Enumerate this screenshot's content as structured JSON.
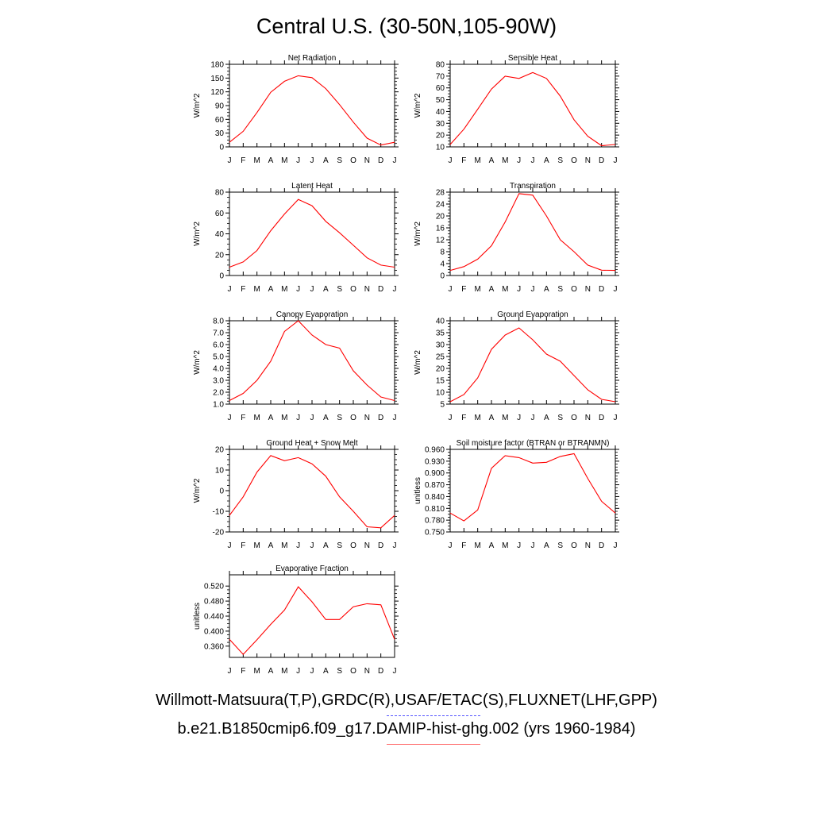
{
  "title": "Central U.S. (30-50N,105-90W)",
  "month_labels": [
    "J",
    "F",
    "M",
    "A",
    "M",
    "J",
    "J",
    "A",
    "S",
    "O",
    "N",
    "D",
    "J"
  ],
  "colors": {
    "model": "#ff0000",
    "obs": "#5555ff",
    "axis": "#000000"
  },
  "legend": {
    "obs_label": "Willmott-Matsuura(T,P),GRDC(R),USAF/ETAC(S),FLUXNET(LHF,GPP)",
    "model_label": "b.e21.B1850cmip6.f09_g17.DAMIP-hist-ghg.002 (yrs 1960-1984)"
  },
  "chart_data": [
    {
      "type": "line",
      "title": "Net Radiation",
      "ylabel": "W/m^2",
      "ylim": [
        0,
        180
      ],
      "yticks": [
        "0",
        "30",
        "60",
        "90",
        "120",
        "150",
        "180"
      ],
      "ytick_values": [
        0,
        30,
        60,
        90,
        120,
        150,
        180
      ],
      "x": [
        "J",
        "F",
        "M",
        "A",
        "M",
        "J",
        "J",
        "A",
        "S",
        "O",
        "N",
        "D",
        "J"
      ],
      "values": [
        10,
        34,
        75,
        119,
        143,
        155,
        151,
        127,
        92,
        54,
        19,
        4,
        10
      ]
    },
    {
      "type": "line",
      "title": "Sensible Heat",
      "ylabel": "W/m^2",
      "ylim": [
        10,
        80
      ],
      "yticks": [
        "10",
        "20",
        "30",
        "40",
        "50",
        "60",
        "70",
        "80"
      ],
      "ytick_values": [
        10,
        20,
        30,
        40,
        50,
        60,
        70,
        80
      ],
      "x": [
        "J",
        "F",
        "M",
        "A",
        "M",
        "J",
        "J",
        "A",
        "S",
        "O",
        "N",
        "D",
        "J"
      ],
      "values": [
        12,
        25,
        42,
        59,
        70,
        68,
        73,
        68,
        53,
        33,
        19,
        11,
        12
      ]
    },
    {
      "type": "line",
      "title": "Latent Heat",
      "ylabel": "W/m^2",
      "ylim": [
        0,
        80
      ],
      "yticks": [
        "0",
        "20",
        "40",
        "60",
        "80"
      ],
      "ytick_values": [
        0,
        20,
        40,
        60,
        80
      ],
      "x": [
        "J",
        "F",
        "M",
        "A",
        "M",
        "J",
        "J",
        "A",
        "S",
        "O",
        "N",
        "D",
        "J"
      ],
      "values": [
        8,
        13,
        24,
        43,
        59,
        73,
        67,
        52,
        41,
        29,
        17,
        10,
        8
      ]
    },
    {
      "type": "line",
      "title": "Transpiration",
      "ylabel": "W/m^2",
      "ylim": [
        0,
        28
      ],
      "yticks": [
        "0",
        "4",
        "8",
        "12",
        "16",
        "20",
        "24",
        "28"
      ],
      "ytick_values": [
        0,
        4,
        8,
        12,
        16,
        20,
        24,
        28
      ],
      "x": [
        "J",
        "F",
        "M",
        "A",
        "M",
        "J",
        "J",
        "A",
        "S",
        "O",
        "N",
        "D",
        "J"
      ],
      "values": [
        1.7,
        3,
        5.5,
        10,
        18,
        27.5,
        27,
        20,
        12,
        8,
        3.5,
        1.8,
        1.7
      ]
    },
    {
      "type": "line",
      "title": "Canopy Evaporation",
      "ylabel": "W/m^2",
      "ylim": [
        1.0,
        8.0
      ],
      "yticks": [
        "1.0",
        "2.0",
        "3.0",
        "4.0",
        "5.0",
        "6.0",
        "7.0",
        "8.0"
      ],
      "ytick_values": [
        1,
        2,
        3,
        4,
        5,
        6,
        7,
        8
      ],
      "x": [
        "J",
        "F",
        "M",
        "A",
        "M",
        "J",
        "J",
        "A",
        "S",
        "O",
        "N",
        "D",
        "J"
      ],
      "values": [
        1.3,
        1.9,
        3.0,
        4.6,
        7.1,
        8.0,
        6.8,
        6.0,
        5.7,
        3.8,
        2.6,
        1.6,
        1.3
      ]
    },
    {
      "type": "line",
      "title": "Ground Evaporation",
      "ylabel": "W/m^2",
      "ylim": [
        5,
        40
      ],
      "yticks": [
        "5",
        "10",
        "15",
        "20",
        "25",
        "30",
        "35",
        "40"
      ],
      "ytick_values": [
        5,
        10,
        15,
        20,
        25,
        30,
        35,
        40
      ],
      "x": [
        "J",
        "F",
        "M",
        "A",
        "M",
        "J",
        "J",
        "A",
        "S",
        "O",
        "N",
        "D",
        "J"
      ],
      "values": [
        6,
        9,
        16,
        28,
        34,
        37,
        32,
        26,
        23,
        17,
        11,
        7,
        6
      ]
    },
    {
      "type": "line",
      "title": "Ground Heat + Snow Melt",
      "ylabel": "W/m^2",
      "ylim": [
        -20,
        20
      ],
      "yticks": [
        "-20",
        "-10",
        "0",
        "10",
        "20"
      ],
      "ytick_values": [
        -20,
        -10,
        0,
        10,
        20
      ],
      "x": [
        "J",
        "F",
        "M",
        "A",
        "M",
        "J",
        "J",
        "A",
        "S",
        "O",
        "N",
        "D",
        "J"
      ],
      "values": [
        -12,
        -3,
        9,
        17,
        14.5,
        16,
        13,
        7,
        -3,
        -10,
        -17.5,
        -18,
        -12
      ]
    },
    {
      "type": "line",
      "title": "Soil moisture factor (BTRAN or BTRANMN)",
      "ylabel": "unitless",
      "ylim": [
        0.75,
        0.96
      ],
      "yticks": [
        "0.750",
        "0.780",
        "0.810",
        "0.840",
        "0.870",
        "0.900",
        "0.930",
        "0.960"
      ],
      "ytick_values": [
        0.75,
        0.78,
        0.81,
        0.84,
        0.87,
        0.9,
        0.93,
        0.96
      ],
      "x": [
        "J",
        "F",
        "M",
        "A",
        "M",
        "J",
        "J",
        "A",
        "S",
        "O",
        "N",
        "D",
        "J"
      ],
      "values": [
        0.798,
        0.778,
        0.806,
        0.912,
        0.944,
        0.939,
        0.925,
        0.927,
        0.942,
        0.949,
        0.886,
        0.828,
        0.798
      ]
    },
    {
      "type": "line",
      "title": "Evaporative Fraction",
      "ylabel": "unitless",
      "ylim": [
        0.33,
        0.55
      ],
      "yticks": [
        "0.360",
        "0.400",
        "0.440",
        "0.480",
        "0.520"
      ],
      "ytick_values": [
        0.36,
        0.4,
        0.44,
        0.48,
        0.52
      ],
      "x": [
        "J",
        "F",
        "M",
        "A",
        "M",
        "J",
        "J",
        "A",
        "S",
        "O",
        "N",
        "D",
        "J"
      ],
      "values": [
        0.378,
        0.338,
        0.377,
        0.418,
        0.456,
        0.518,
        0.478,
        0.431,
        0.431,
        0.465,
        0.473,
        0.47,
        0.378
      ]
    }
  ]
}
